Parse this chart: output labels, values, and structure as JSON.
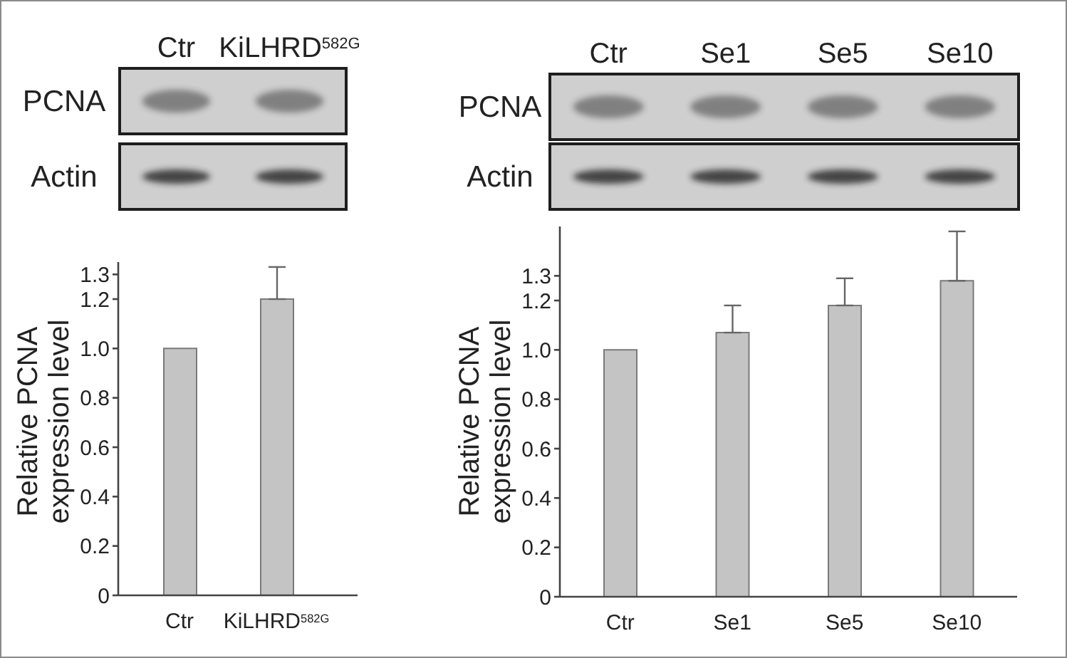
{
  "chart_data": [
    {
      "type": "bar",
      "categories": [
        "Ctr",
        "KiLHRD$^{582G}$"
      ],
      "values": [
        1.0,
        1.2
      ],
      "errors": [
        null,
        [
          1.2,
          1.33
        ]
      ],
      "color": "#c4c4c4",
      "ylabel": "Relative PCNA\nexpression level",
      "ylim": [
        0,
        1.35
      ],
      "yticks": [
        0,
        0.2,
        0.4,
        0.6,
        0.8,
        {
          "value": 1,
          "label": "1.0"
        },
        1.2,
        1.3
      ],
      "annotations": [
        "PCNA",
        "Actin"
      ]
    },
    {
      "type": "bar",
      "categories": [
        "Ctr",
        "Se1",
        "Se5",
        "Se10"
      ],
      "values": [
        1.0,
        1.07,
        1.18,
        1.28
      ],
      "errors": [
        null,
        [
          1.07,
          1.18
        ],
        [
          1.18,
          1.29
        ],
        [
          1.28,
          1.48
        ]
      ],
      "color": "#c4c4c4",
      "ylabel": "Relative PCNA\nexpression level",
      "ylim": [
        0,
        1.5
      ],
      "yticks": [
        0,
        0.2,
        0.4,
        0.6,
        0.8,
        {
          "value": 1,
          "label": "1.0"
        },
        1.2,
        1.3
      ],
      "annotations": [
        "PCNA",
        "Actin"
      ]
    }
  ]
}
